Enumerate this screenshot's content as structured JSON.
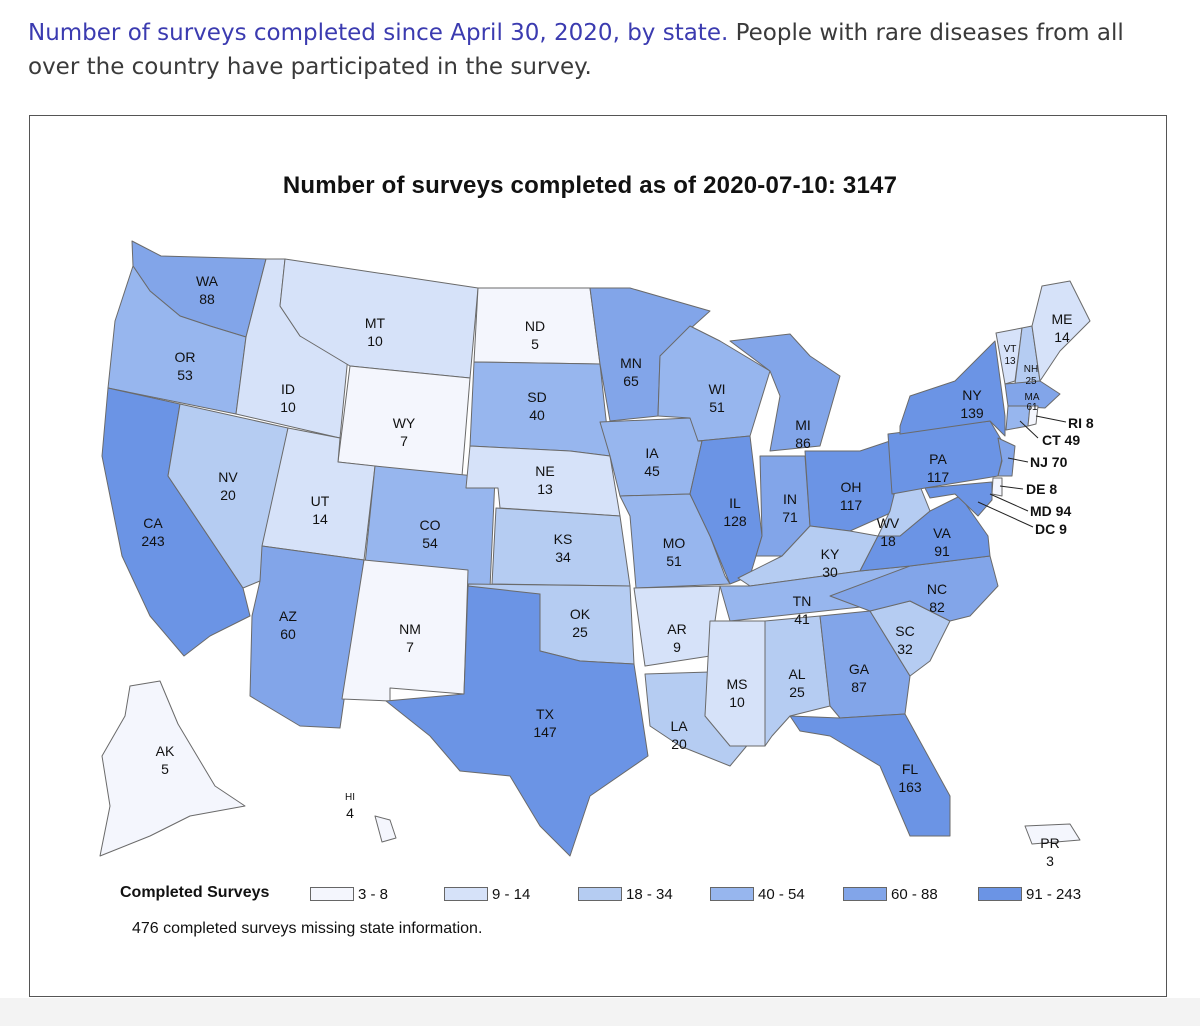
{
  "intro": {
    "lead": "Number of surveys completed since April 30, 2020, by state.",
    "text": " People with rare diseases from all over the country have participated in the survey."
  },
  "map": {
    "title": "Number of surveys completed as of 2020-07-10: 3147",
    "missing_note": "476 completed surveys missing state information."
  },
  "legend": {
    "title": "Completed Surveys",
    "bins": [
      {
        "label": "3 - 8",
        "color": "#f4f6fd"
      },
      {
        "label": "9 - 14",
        "color": "#d6e2f9"
      },
      {
        "label": "18 - 34",
        "color": "#b5ccf2"
      },
      {
        "label": "40 - 54",
        "color": "#97b6ee"
      },
      {
        "label": "60 - 88",
        "color": "#82a5e9"
      },
      {
        "label": "91 - 243",
        "color": "#6b94e5"
      }
    ]
  },
  "states": {
    "WA": {
      "abbr": "WA",
      "count": "88"
    },
    "OR": {
      "abbr": "OR",
      "count": "53"
    },
    "CA": {
      "abbr": "CA",
      "count": "243"
    },
    "NV": {
      "abbr": "NV",
      "count": "20"
    },
    "ID": {
      "abbr": "ID",
      "count": "10"
    },
    "MT": {
      "abbr": "MT",
      "count": "10"
    },
    "WY": {
      "abbr": "WY",
      "count": "7"
    },
    "UT": {
      "abbr": "UT",
      "count": "14"
    },
    "CO": {
      "abbr": "CO",
      "count": "54"
    },
    "AZ": {
      "abbr": "AZ",
      "count": "60"
    },
    "NM": {
      "abbr": "NM",
      "count": "7"
    },
    "ND": {
      "abbr": "ND",
      "count": "5"
    },
    "SD": {
      "abbr": "SD",
      "count": "40"
    },
    "NE": {
      "abbr": "NE",
      "count": "13"
    },
    "KS": {
      "abbr": "KS",
      "count": "34"
    },
    "OK": {
      "abbr": "OK",
      "count": "25"
    },
    "TX": {
      "abbr": "TX",
      "count": "147"
    },
    "MN": {
      "abbr": "MN",
      "count": "65"
    },
    "IA": {
      "abbr": "IA",
      "count": "45"
    },
    "MO": {
      "abbr": "MO",
      "count": "51"
    },
    "AR": {
      "abbr": "AR",
      "count": "9"
    },
    "LA": {
      "abbr": "LA",
      "count": "20"
    },
    "WI": {
      "abbr": "WI",
      "count": "51"
    },
    "IL": {
      "abbr": "IL",
      "count": "128"
    },
    "MI": {
      "abbr": "MI",
      "count": "86"
    },
    "IN": {
      "abbr": "IN",
      "count": "71"
    },
    "OH": {
      "abbr": "OH",
      "count": "117"
    },
    "KY": {
      "abbr": "KY",
      "count": "30"
    },
    "TN": {
      "abbr": "TN",
      "count": "41"
    },
    "MS": {
      "abbr": "MS",
      "count": "10"
    },
    "AL": {
      "abbr": "AL",
      "count": "25"
    },
    "GA": {
      "abbr": "GA",
      "count": "87"
    },
    "FL": {
      "abbr": "FL",
      "count": "163"
    },
    "SC": {
      "abbr": "SC",
      "count": "32"
    },
    "NC": {
      "abbr": "NC",
      "count": "82"
    },
    "VA": {
      "abbr": "VA",
      "count": "91"
    },
    "WV": {
      "abbr": "WV",
      "count": "18"
    },
    "PA": {
      "abbr": "PA",
      "count": "117"
    },
    "NY": {
      "abbr": "NY",
      "count": "139"
    },
    "VT": {
      "abbr": "VT",
      "count": "13"
    },
    "NH": {
      "abbr": "NH",
      "count": "25"
    },
    "ME": {
      "abbr": "ME",
      "count": "14"
    },
    "MA": {
      "abbr": "MA",
      "count": "61"
    },
    "AK": {
      "abbr": "AK",
      "count": "5"
    },
    "HI": {
      "abbr": "HI",
      "count": "4"
    },
    "PR": {
      "abbr": "PR",
      "count": "3"
    }
  },
  "callouts": {
    "RI": "RI 8",
    "CT": "CT 49",
    "NJ": "NJ 70",
    "DE": "DE 8",
    "MD": "MD 94",
    "DC": "DC 9"
  }
}
